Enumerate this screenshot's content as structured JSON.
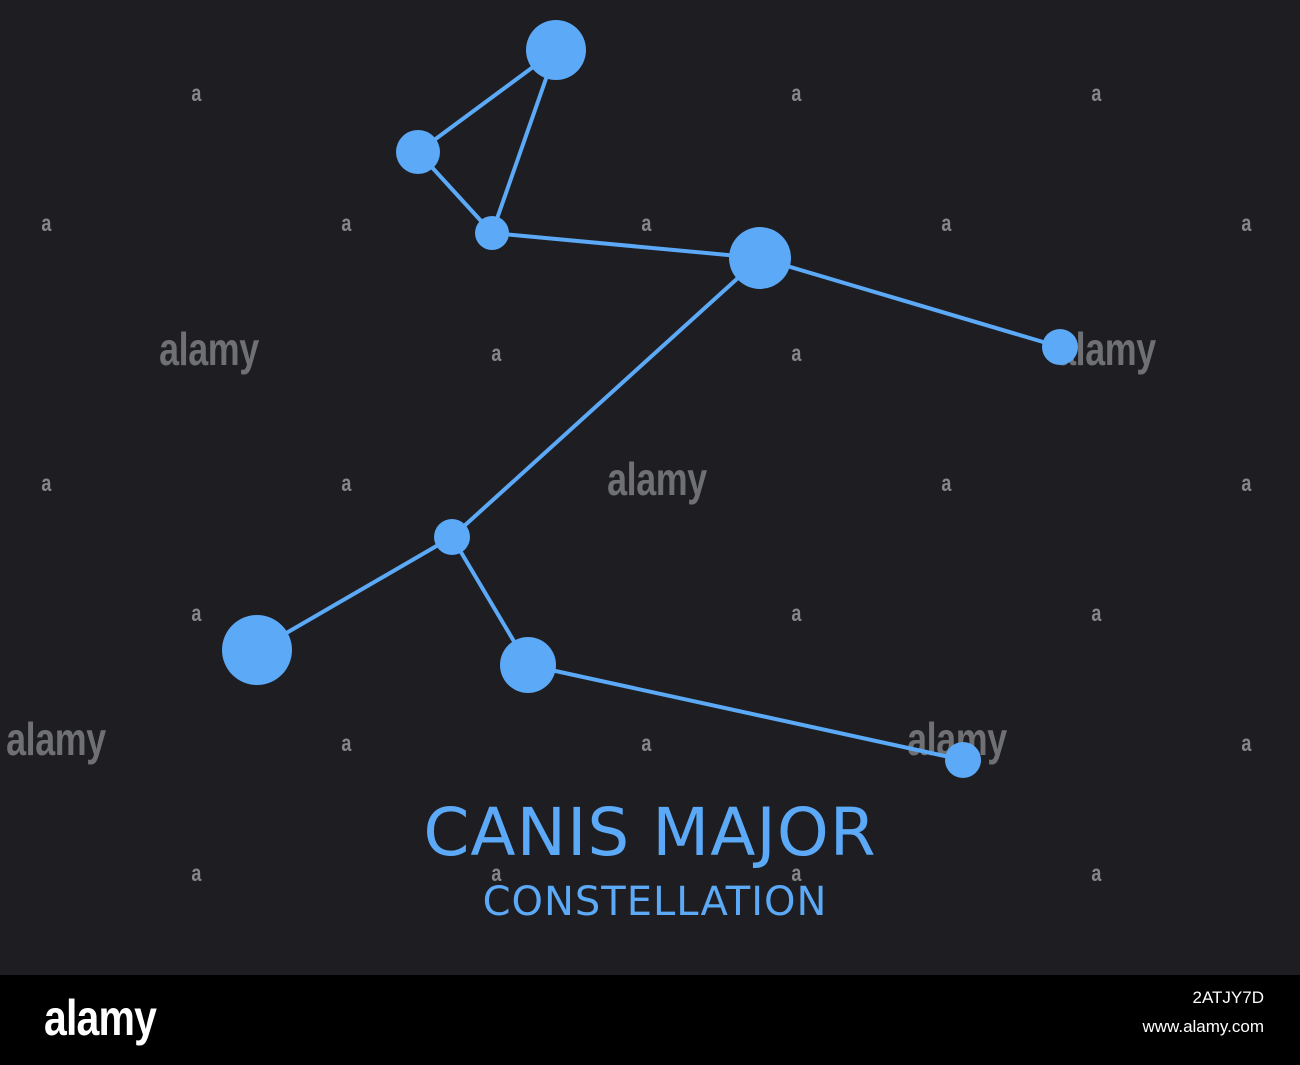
{
  "title": "CANIS MAJOR",
  "subtitle": "CONSTELLATION",
  "colors": {
    "background": "#1e1e22",
    "star": "#5ba9f7",
    "line": "#5ba9f7",
    "watermark": "#6f7074",
    "footer": "#000000",
    "footer_text": "#ffffff"
  },
  "watermark": {
    "word": "alamy",
    "mark": "a"
  },
  "footer": {
    "logo": "alamy",
    "image_id": "2ATJY7D",
    "url": "www.alamy.com"
  }
}
